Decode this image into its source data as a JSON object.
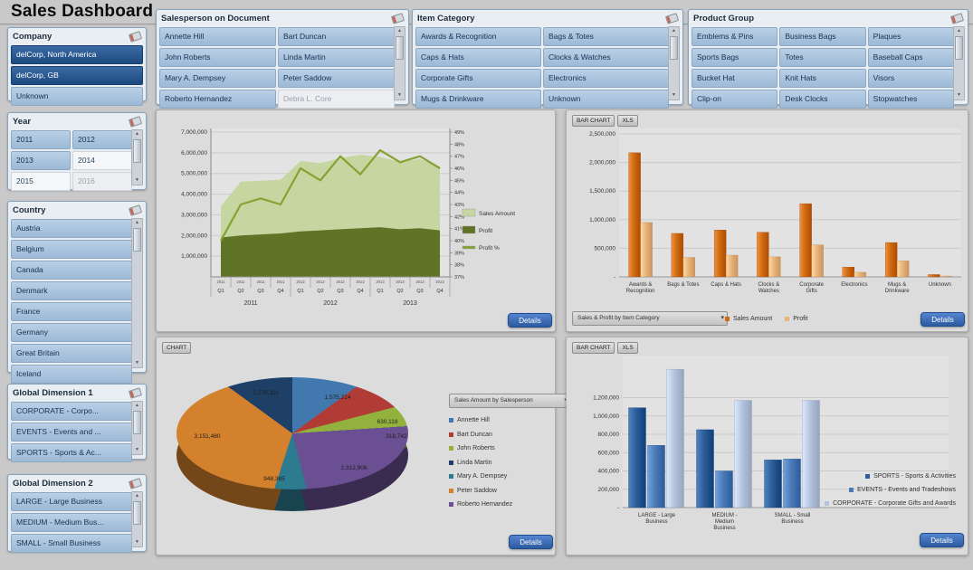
{
  "app": {
    "title": "Sales Dashboard"
  },
  "labels": {
    "details": "Details"
  },
  "colors": {
    "accent_blue": "#2b5aa0",
    "selected_item": "#1d4a7f",
    "optional_item": "#a9c3dd",
    "sales_orange": "#cd6a14",
    "profit_orange": "#e8b47c",
    "sales_area_green": "#c6d6a0",
    "profit_area_green": "#5f7426",
    "profit_line_green": "#85a233"
  },
  "filters": {
    "company": {
      "title": "Company",
      "cols": 1,
      "items": [
        {
          "label": "delCorp, North America",
          "state": "selected"
        },
        {
          "label": "delCorp, GB",
          "state": "selected"
        },
        {
          "label": "Unknown",
          "state": "optional"
        }
      ]
    },
    "year": {
      "title": "Year",
      "cols": 2,
      "items": [
        {
          "label": "2011",
          "state": "optional"
        },
        {
          "label": "2012",
          "state": "optional"
        },
        {
          "label": "2013",
          "state": "optional"
        },
        {
          "label": "2014",
          "state": "alt"
        },
        {
          "label": "2015",
          "state": "alt"
        },
        {
          "label": "2016",
          "state": "excluded"
        }
      ]
    },
    "country": {
      "title": "Country",
      "cols": 1,
      "items": [
        {
          "label": "Austria",
          "state": "optional"
        },
        {
          "label": "Belgium",
          "state": "optional"
        },
        {
          "label": "Canada",
          "state": "optional"
        },
        {
          "label": "Denmark",
          "state": "optional"
        },
        {
          "label": "France",
          "state": "optional"
        },
        {
          "label": "Germany",
          "state": "optional"
        },
        {
          "label": "Great Britain",
          "state": "optional"
        },
        {
          "label": "Iceland",
          "state": "optional"
        }
      ]
    },
    "global_dim1": {
      "title": "Global Dimension 1",
      "cols": 1,
      "items": [
        {
          "label": "CORPORATE - Corpo...",
          "state": "optional"
        },
        {
          "label": "EVENTS - Events and ...",
          "state": "optional"
        },
        {
          "label": "SPORTS - Sports & Ac...",
          "state": "optional"
        }
      ]
    },
    "global_dim2": {
      "title": "Global Dimension 2",
      "cols": 1,
      "items": [
        {
          "label": "LARGE - Large Business",
          "state": "optional"
        },
        {
          "label": "MEDIUM - Medium Bus...",
          "state": "optional"
        },
        {
          "label": "SMALL - Small Business",
          "state": "optional"
        }
      ]
    },
    "salesperson": {
      "title": "Salesperson on Document",
      "cols": 2,
      "items": [
        {
          "label": "Annette Hill",
          "state": "optional"
        },
        {
          "label": "Bart Duncan",
          "state": "optional"
        },
        {
          "label": "John Roberts",
          "state": "optional"
        },
        {
          "label": "Linda Martin",
          "state": "optional"
        },
        {
          "label": "Mary A. Dempsey",
          "state": "optional"
        },
        {
          "label": "Peter Saddow",
          "state": "optional"
        },
        {
          "label": "Roberto Hernandez",
          "state": "optional"
        },
        {
          "label": "Debra L. Core",
          "state": "excluded"
        }
      ]
    },
    "item_category": {
      "title": "Item Category",
      "cols": 2,
      "items": [
        {
          "label": "Awards & Recognition",
          "state": "optional"
        },
        {
          "label": "Bags & Totes",
          "state": "optional"
        },
        {
          "label": "Caps & Hats",
          "state": "optional"
        },
        {
          "label": "Clocks & Watches",
          "state": "optional"
        },
        {
          "label": "Corporate Gifts",
          "state": "optional"
        },
        {
          "label": "Electronics",
          "state": "optional"
        },
        {
          "label": "Mugs & Drinkware",
          "state": "optional"
        },
        {
          "label": "Unknown",
          "state": "optional"
        }
      ]
    },
    "product_group": {
      "title": "Product Group",
      "cols": 3,
      "items": [
        {
          "label": "Emblems & Pins",
          "state": "optional"
        },
        {
          "label": "Business Bags",
          "state": "optional"
        },
        {
          "label": "Plaques",
          "state": "optional"
        },
        {
          "label": "Sports Bags",
          "state": "optional"
        },
        {
          "label": "Totes",
          "state": "optional"
        },
        {
          "label": "Baseball Caps",
          "state": "optional"
        },
        {
          "label": "Bucket Hat",
          "state": "optional"
        },
        {
          "label": "Knit Hats",
          "state": "optional"
        },
        {
          "label": "Visors",
          "state": "optional"
        },
        {
          "label": "Clip-on",
          "state": "optional"
        },
        {
          "label": "Desk Clocks",
          "state": "optional"
        },
        {
          "label": "Stopwatches",
          "state": "optional"
        }
      ]
    }
  },
  "chart_data": [
    {
      "type": "area",
      "x_groups": [
        "2011",
        "2012",
        "2013"
      ],
      "x_quarters": [
        "Q1",
        "Q2",
        "Q3",
        "Q4"
      ],
      "ylim": [
        0,
        7000000
      ],
      "y_tick_step": 1000000,
      "y2lim": [
        37,
        49
      ],
      "y2_tick_step": 1,
      "grid": true,
      "legend_position": "right",
      "series": [
        {
          "name": "Sales Amount",
          "kind": "area",
          "color": "#c6d6a0",
          "values": [
            3400000,
            4600000,
            4650000,
            4700000,
            5600000,
            5500000,
            5750000,
            5900000,
            5800000,
            5550000,
            5700000,
            5350000
          ]
        },
        {
          "name": "Profit",
          "kind": "area",
          "color": "#5f7426",
          "values": [
            1900000,
            2000000,
            2050000,
            2100000,
            2200000,
            2250000,
            2300000,
            2350000,
            2400000,
            2300000,
            2350000,
            2250000
          ]
        },
        {
          "name": "Profit %",
          "kind": "line",
          "axis": "right",
          "color": "#85a233",
          "values": [
            40,
            43,
            43.5,
            43,
            46,
            45,
            47,
            45.5,
            47.5,
            46.5,
            47,
            46
          ]
        }
      ]
    },
    {
      "type": "bar",
      "toolbar": [
        "BAR CHART",
        "XLS"
      ],
      "dropdown_label": "Sales & Profit by Item Category",
      "categories": [
        "Awards & Recognition",
        "Bags & Totes",
        "Caps & Hats",
        "Clocks & Watches",
        "Corporate Gifts",
        "Electronics",
        "Mugs & Drinkware",
        "Unknown"
      ],
      "category_label_lines": [
        [
          "Awards &",
          "Recognition"
        ],
        [
          "Bags & Totes"
        ],
        [
          "Caps & Hats"
        ],
        [
          "Clocks &",
          "Watches"
        ],
        [
          "Corporate",
          "Gifts"
        ],
        [
          "Electronics"
        ],
        [
          "Mugs &",
          "Drinkware"
        ],
        [
          "Unknown"
        ]
      ],
      "ylim": [
        0,
        2500000
      ],
      "y_tick_step": 500000,
      "y_label_max": 2500000,
      "grid": true,
      "legend_position": "bottom",
      "series": [
        {
          "name": "Sales Amount",
          "color": "#cd6a14",
          "values": [
            2170000,
            760000,
            820000,
            780000,
            1280000,
            170000,
            600000,
            40000
          ]
        },
        {
          "name": "Profit",
          "color": "#e8b47c",
          "values": [
            950000,
            340000,
            380000,
            350000,
            560000,
            80000,
            280000,
            15000
          ]
        }
      ]
    },
    {
      "type": "pie",
      "toolbar": [
        "CHART"
      ],
      "dropdown_label": "Sales Amount by Salesperson",
      "slices": [
        {
          "name": "Annette Hill",
          "value": 1575214,
          "pct": 15,
          "color": "#4178ae"
        },
        {
          "name": "Bart Duncan",
          "value": 630118,
          "pct": 6,
          "color": "#b03c35"
        },
        {
          "name": "John Roberts",
          "value": 318742,
          "pct": 3,
          "color": "#93b13d"
        },
        {
          "name": "Roberto Hernandez",
          "value": 2312906,
          "pct": 22,
          "color": "#6a4f92"
        },
        {
          "name": "Mary A. Dempsey",
          "value": 948365,
          "pct": 9,
          "color": "#2d7b8f"
        },
        {
          "name": "Peter Saddow",
          "value": 3151480,
          "pct": 30,
          "color": "#d3812d"
        },
        {
          "name": "Linda Martin",
          "value": 1576331,
          "pct": 15,
          "color": "#1e3f66"
        }
      ],
      "legend_order": [
        "Annette Hill",
        "Bart Duncan",
        "John Roberts",
        "Linda Martin",
        "Mary A. Dempsey",
        "Peter Saddow",
        "Roberto Hernandez"
      ]
    },
    {
      "type": "bar",
      "toolbar": [
        "BAR CHART",
        "XLS"
      ],
      "categories": [
        "LARGE - Large Business",
        "MEDIUM - Medium Business",
        "SMALL - Small Business"
      ],
      "category_label_lines": [
        [
          "LARGE - Large",
          "Business"
        ],
        [
          "MEDIUM -",
          "Medium",
          "Business"
        ],
        [
          "SMALL - Small",
          "Business"
        ]
      ],
      "ylim": [
        0,
        1600000
      ],
      "y_tick_step": 200000,
      "y_label_max": 1200000,
      "grid": true,
      "legend_position": "right",
      "series": [
        {
          "name": "SPORTS - Sports & Activities",
          "color": "#2c5d99",
          "values": [
            1090000,
            850000,
            520000
          ]
        },
        {
          "name": "EVENTS - Events and Tradeshows",
          "color": "#4a7ab8",
          "values": [
            680000,
            400000,
            530000
          ]
        },
        {
          "name": "CORPORATE - Corporate Gifts and Awards",
          "color": "#b4c3dd",
          "values": [
            1510000,
            1170000,
            1170000
          ]
        }
      ]
    }
  ]
}
